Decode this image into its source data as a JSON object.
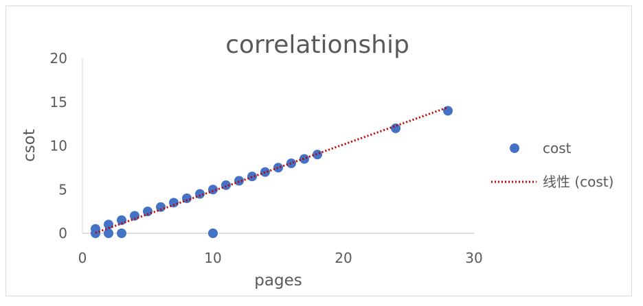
{
  "chart_data": {
    "type": "scatter",
    "title": "correlationship",
    "xlabel": "pages",
    "ylabel": "csot",
    "xlim": [
      0,
      30
    ],
    "ylim": [
      0,
      20
    ],
    "x_ticks": [
      "0",
      "10",
      "20",
      "30"
    ],
    "y_ticks": [
      "0",
      "5",
      "10",
      "15",
      "20"
    ],
    "grid": false,
    "legend_position": "right",
    "series": [
      {
        "name": "cost",
        "color": "#4472c4",
        "points": [
          [
            1,
            0.5
          ],
          [
            1,
            0
          ],
          [
            2,
            1
          ],
          [
            2,
            0
          ],
          [
            3,
            1.5
          ],
          [
            3,
            0
          ],
          [
            4,
            2
          ],
          [
            5,
            2.5
          ],
          [
            6,
            3
          ],
          [
            7,
            3.5
          ],
          [
            8,
            4
          ],
          [
            9,
            4.5
          ],
          [
            10,
            5
          ],
          [
            10,
            0
          ],
          [
            11,
            5.5
          ],
          [
            12,
            6
          ],
          [
            13,
            6.5
          ],
          [
            14,
            7
          ],
          [
            15,
            7.5
          ],
          [
            16,
            8
          ],
          [
            17,
            8.5
          ],
          [
            18,
            9
          ],
          [
            24,
            12
          ],
          [
            28,
            14
          ]
        ]
      }
    ],
    "trendline": {
      "name": "线性 (cost)",
      "type": "linear",
      "color": "#c00000",
      "x": [
        1,
        28
      ],
      "y": [
        0.05,
        14.4
      ]
    }
  }
}
